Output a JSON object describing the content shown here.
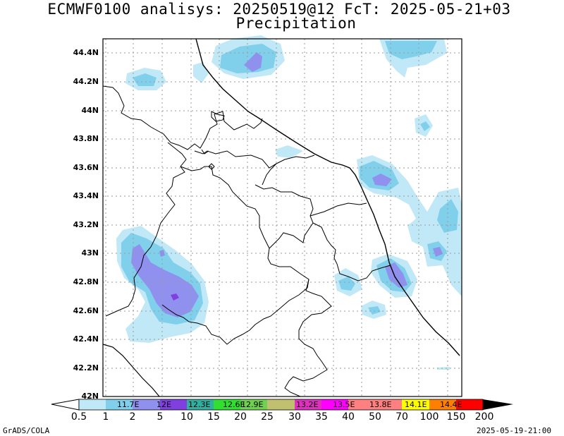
{
  "title_line1": "ECMWF0100 analisys: 20250519@12 FcT: 2025-05-21+03",
  "title_line2": "Precipitation",
  "lat_labels": [
    "44.4N",
    "44.2N",
    "44N",
    "43.8N",
    "43.6N",
    "43.4N",
    "43.2N",
    "43N",
    "42.8N",
    "42.6N",
    "42.4N",
    "42.2N",
    "42N"
  ],
  "lon_labels": [
    "11.7E",
    "12E",
    "12.3E",
    "12.6E",
    "12.9E",
    "13.2E",
    "13.5E",
    "13.8E",
    "14.1E",
    "14.4E"
  ],
  "colorbar": {
    "values": [
      "0.5",
      "1",
      "2",
      "5",
      "10",
      "15",
      "20",
      "25",
      "30",
      "35",
      "40",
      "50",
      "70",
      "100",
      "150",
      "200"
    ],
    "colors": [
      "#c0e8f6",
      "#80d0ec",
      "#9090ee",
      "#8040e0",
      "#30b0a0",
      "#30e030",
      "#70d050",
      "#c0c070",
      "#e030c0",
      "#ff00ff",
      "#ff8080",
      "#ff8080",
      "#ffff00",
      "#ff8000",
      "#ff0000",
      "#900000",
      "#000000"
    ]
  },
  "footer_left": "GrADS/COLA",
  "footer_right": "2025-05-19-21:00"
}
